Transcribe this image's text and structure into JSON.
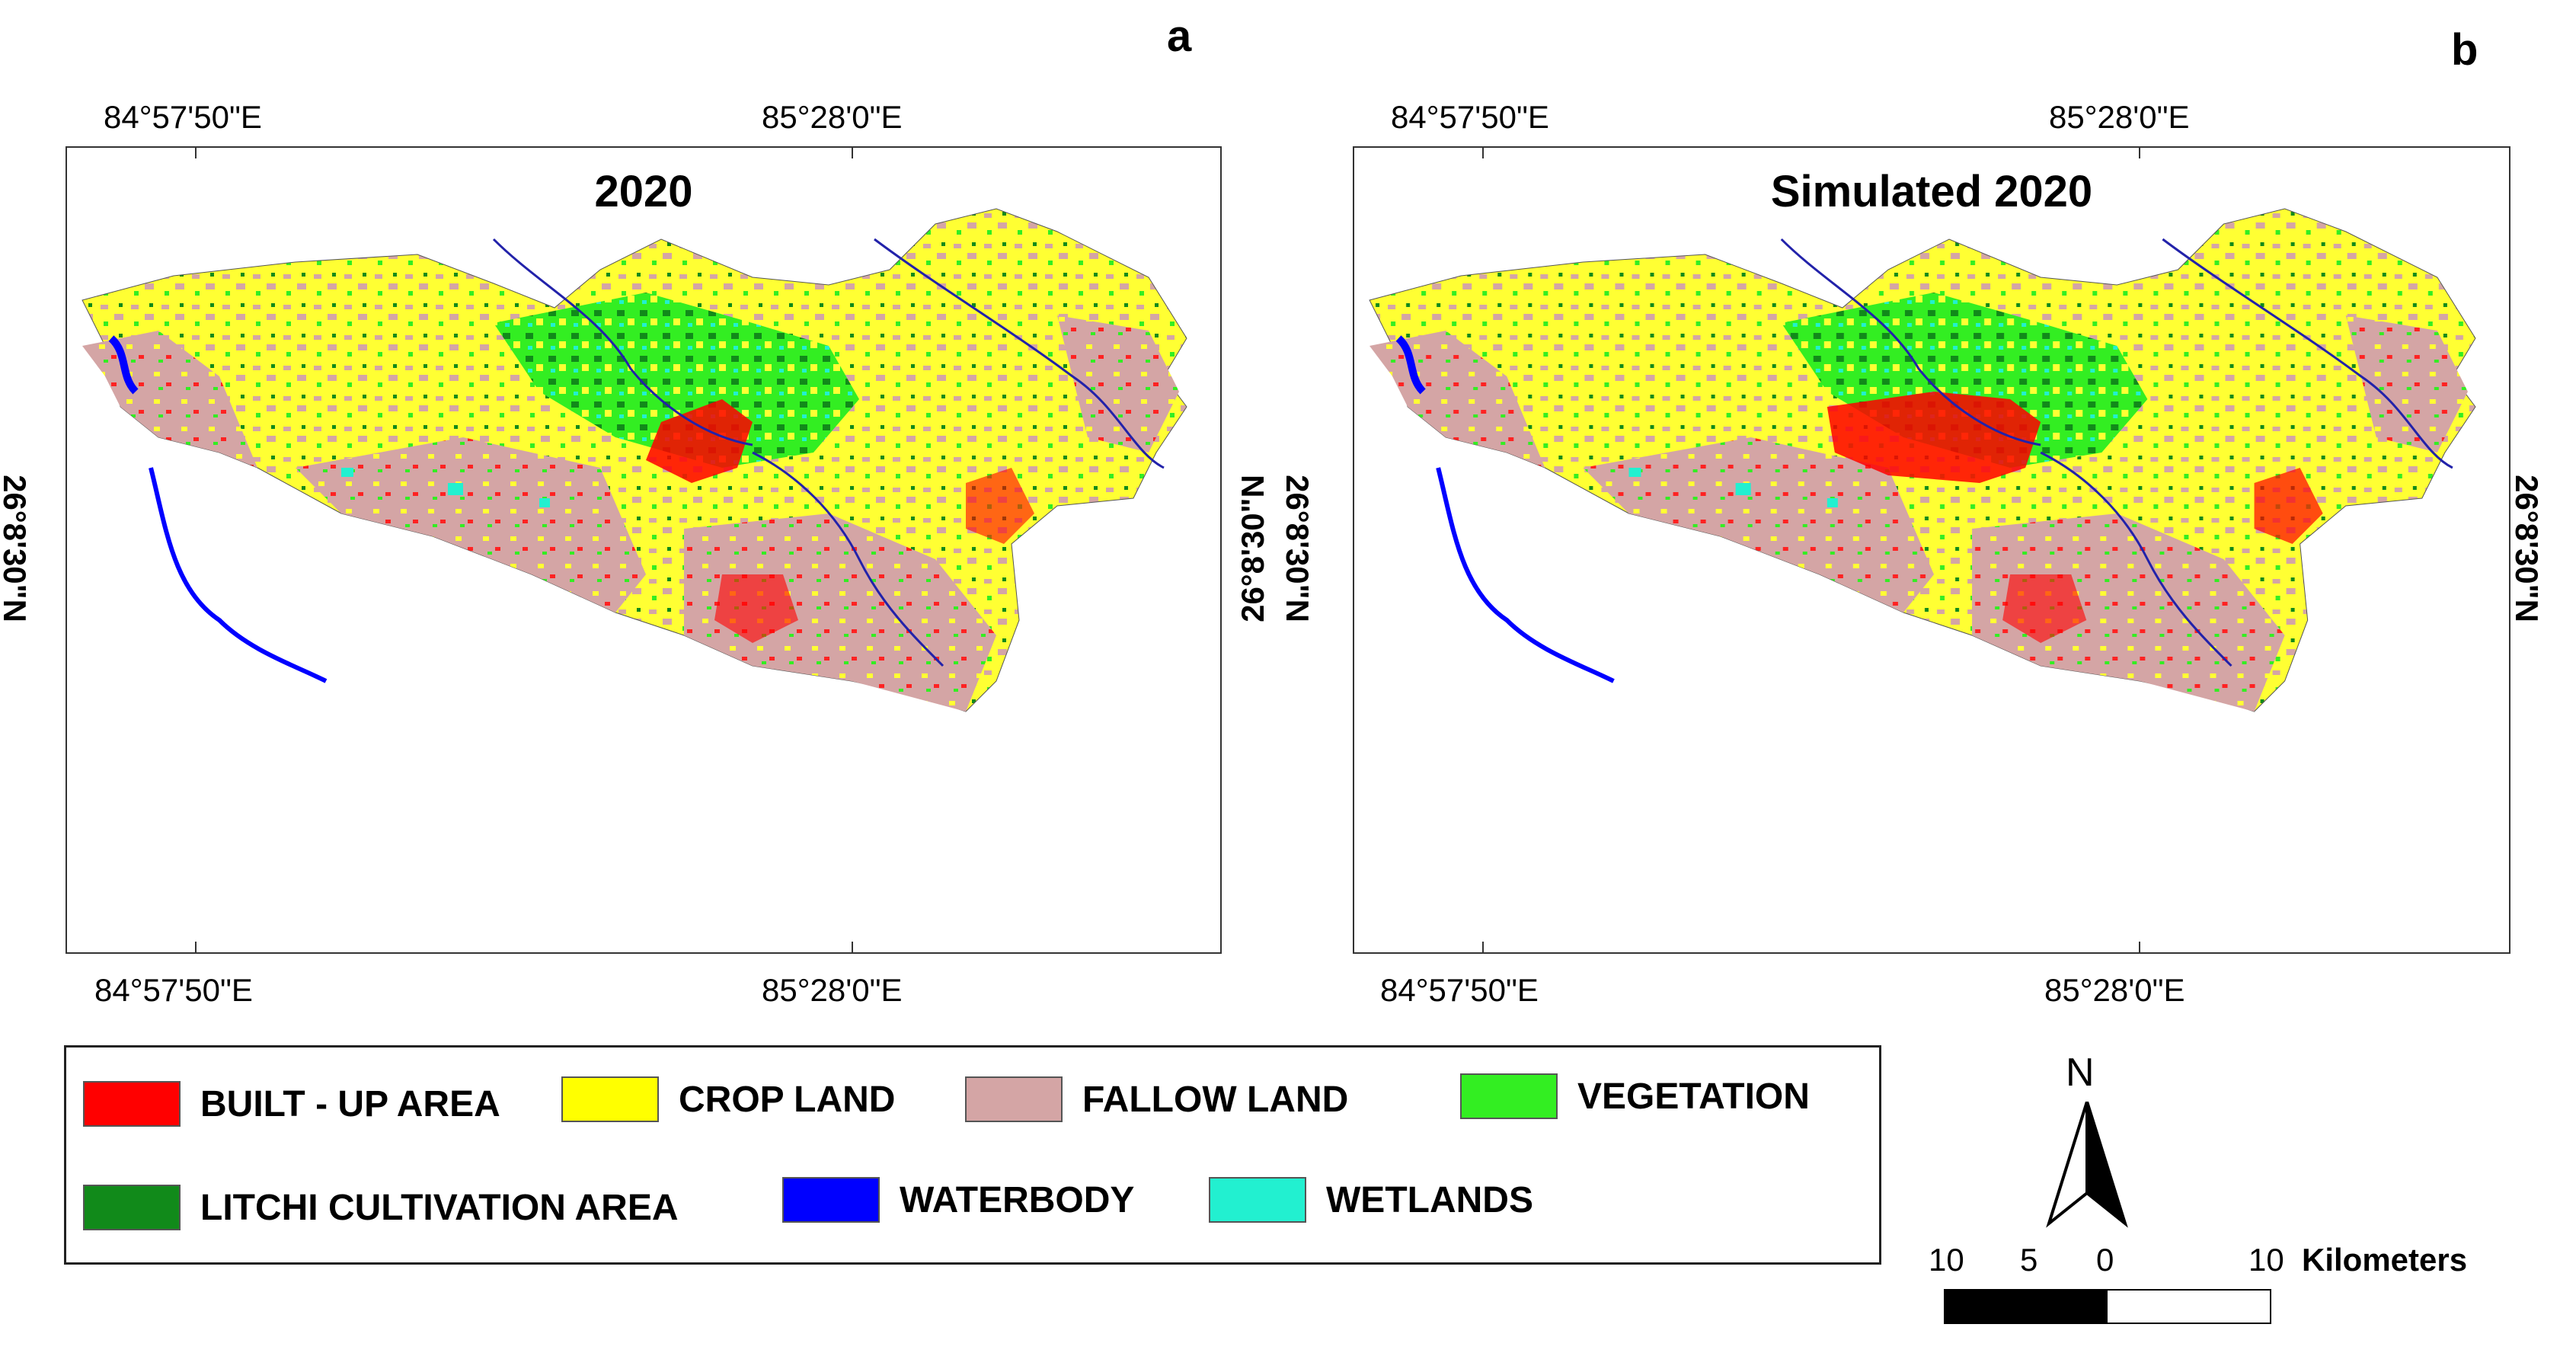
{
  "panels": [
    {
      "letter": "a",
      "title": "2020",
      "top_lon": [
        "84°57'50\"E",
        "85°28'0\"E"
      ],
      "bottom_lon": [
        "84°57'50\"E",
        "85°28'0\"E"
      ],
      "right_lat": "26°8'30\"N",
      "left_lat": "26°8'30\"N"
    },
    {
      "letter": "b",
      "title": "Simulated 2020",
      "top_lon": [
        "84°57'50\"E",
        "85°28'0\"E"
      ],
      "bottom_lon": [
        "84°57'50\"E",
        "85°28'0\"E"
      ],
      "right_lat": "26°8'30\"N",
      "left_lat": "26°8'30\"N"
    }
  ],
  "legend": {
    "items": [
      {
        "label": "BUILT - UP AREA",
        "color": "#ff0000"
      },
      {
        "label": "CROP LAND",
        "color": "#ffff00"
      },
      {
        "label": "FALLOW LAND",
        "color": "#d4a5a5"
      },
      {
        "label": "VEGETATION",
        "color": "#33ee22"
      },
      {
        "label": "LITCHI CULTIVATION AREA",
        "color": "#118a1a"
      },
      {
        "label": "WATERBODY",
        "color": "#0000ff"
      },
      {
        "label": "WETLANDS",
        "color": "#22f0d0"
      }
    ]
  },
  "north_arrow": {
    "label": "N"
  },
  "scale_bar": {
    "labels": [
      "10",
      "5",
      "0",
      "10"
    ],
    "unit": "Kilometers"
  }
}
